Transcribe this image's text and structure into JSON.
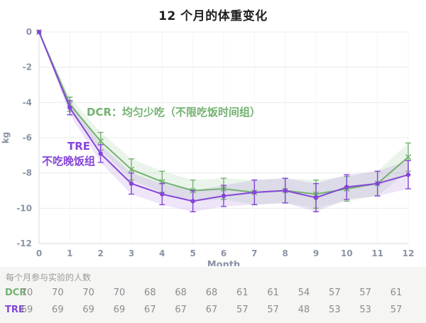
{
  "title": "12 个月的体重变化",
  "colors": {
    "dcr": "#74b270",
    "tre": "#8545d8",
    "grid": "#ececec",
    "vgrid": "#f4f4f4",
    "axis": "#d8d8d8",
    "tick_text": "#8a93a3",
    "footer_bg": "#f5f5f4",
    "footer_text": "#8c8c8c"
  },
  "annotations": {
    "dcr_label": "DCR：均匀少吃（不限吃饭时间组）",
    "tre_label_line1": "TRE",
    "tre_label_line2": "不吃晚饭组"
  },
  "chart_data": {
    "type": "line",
    "title": "12 个月的体重变化",
    "xlabel": "Month",
    "ylabel": "kg",
    "ylim": [
      -12,
      0
    ],
    "xlim": [
      0,
      12
    ],
    "grid": "both-light",
    "legend_position": "inline-annotations",
    "x": [
      0,
      1,
      2,
      3,
      4,
      5,
      6,
      7,
      8,
      9,
      10,
      11,
      12
    ],
    "xticks": [
      0,
      1,
      2,
      3,
      4,
      5,
      6,
      7,
      8,
      9,
      10,
      11,
      12
    ],
    "yticks": [
      0,
      -2,
      -4,
      -6,
      -8,
      -10,
      -12
    ],
    "series": [
      {
        "name": "DCR（均匀少吃，不限吃饭时间组）",
        "color_key": "dcr",
        "marker": "x",
        "values": [
          0,
          -4.1,
          -6.2,
          -7.8,
          -8.5,
          -9.0,
          -8.9,
          -9.1,
          -9.0,
          -9.2,
          -8.9,
          -8.6,
          -7.1
        ],
        "errors": [
          0,
          0.4,
          0.5,
          0.6,
          0.6,
          0.6,
          0.6,
          0.7,
          0.7,
          0.8,
          0.7,
          0.7,
          0.8
        ]
      },
      {
        "name": "TRE（不吃晚饭组）",
        "color_key": "tre",
        "marker": "circle",
        "values": [
          0,
          -4.3,
          -6.9,
          -8.6,
          -9.2,
          -9.6,
          -9.3,
          -9.1,
          -9.0,
          -9.4,
          -8.8,
          -8.6,
          -8.1
        ],
        "errors": [
          0,
          0.4,
          0.5,
          0.6,
          0.6,
          0.6,
          0.6,
          0.7,
          0.7,
          0.8,
          0.7,
          0.7,
          0.8
        ]
      }
    ]
  },
  "footer": {
    "caption": "每个月参与实验的人数",
    "rows": [
      {
        "label": "DCR",
        "values": [
          70,
          70,
          70,
          70,
          68,
          68,
          68,
          61,
          61,
          54,
          57,
          57,
          61
        ]
      },
      {
        "label": "TRE",
        "values": [
          69,
          69,
          69,
          69,
          67,
          67,
          67,
          57,
          57,
          48,
          53,
          53,
          57
        ]
      }
    ]
  }
}
